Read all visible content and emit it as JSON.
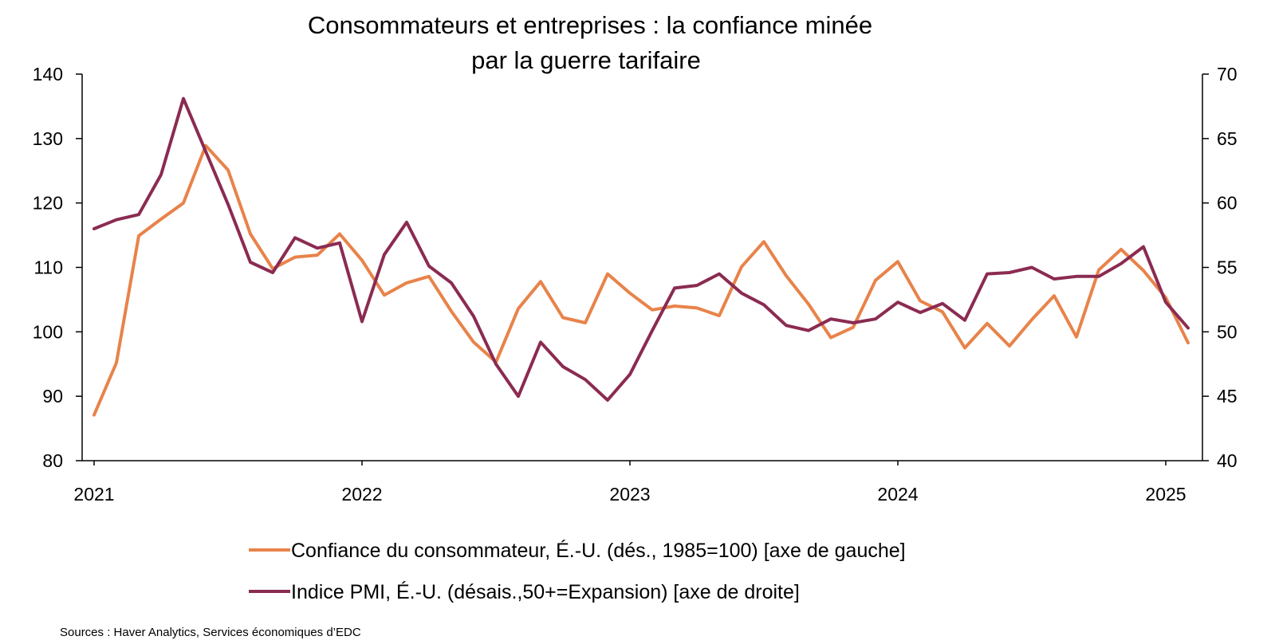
{
  "chart_data": {
    "type": "line",
    "title": [
      "Consommateurs et entreprises : la confiance minée",
      "par la guerre tarifaire"
    ],
    "x_tick_labels": [
      "2021",
      "2022",
      "2023",
      "2024",
      "2025"
    ],
    "x_range": [
      0,
      49
    ],
    "left_axis": {
      "ylim": [
        80,
        140
      ],
      "ticks": [
        80,
        90,
        100,
        110,
        120,
        130,
        140
      ]
    },
    "right_axis": {
      "ylim": [
        40,
        70
      ],
      "ticks": [
        40,
        45,
        50,
        55,
        60,
        65,
        70
      ]
    },
    "series": [
      {
        "name": "Confiance du consommateur, É.-U. (dés., 1985=100) [axe de gauche]",
        "axis": "left",
        "color": "#E8834A",
        "values": [
          87.1,
          95.2,
          114.9,
          117.5,
          120.0,
          128.9,
          125.1,
          115.2,
          109.8,
          111.6,
          111.9,
          115.2,
          111.1,
          105.7,
          107.6,
          108.6,
          103.2,
          98.4,
          95.3,
          103.6,
          107.8,
          102.2,
          101.4,
          109.0,
          106.0,
          103.4,
          104.0,
          103.7,
          102.5,
          110.1,
          114.0,
          108.7,
          104.3,
          99.1,
          100.7,
          108.0,
          110.9,
          104.8,
          103.1,
          97.5,
          101.3,
          97.8,
          101.9,
          105.6,
          99.2,
          109.6,
          112.8,
          109.5,
          105.3,
          98.3
        ]
      },
      {
        "name": "Indice PMI, É.-U. (désais.,50+=Expansion) [axe de droite]",
        "axis": "right",
        "color": "#8B2B52",
        "values": [
          58.0,
          58.7,
          59.1,
          62.2,
          68.1,
          64.0,
          59.9,
          55.4,
          54.6,
          57.3,
          56.5,
          56.9,
          50.8,
          56.0,
          58.5,
          55.1,
          53.8,
          51.2,
          47.5,
          45.0,
          49.2,
          47.3,
          46.3,
          44.7,
          46.7,
          50.1,
          53.4,
          53.6,
          54.5,
          53.0,
          52.1,
          50.5,
          50.1,
          51.0,
          50.7,
          51.0,
          52.3,
          51.5,
          52.2,
          50.9,
          54.5,
          54.6,
          55.0,
          54.1,
          54.3,
          54.3,
          55.3,
          56.6,
          52.3,
          50.3
        ]
      }
    ]
  },
  "legend": {
    "consumer_label": "Confiance du consommateur, É.-U. (dés., 1985=100) [axe de gauche]",
    "pmi_label": "Indice PMI, É.-U. (désais.,50+=Expansion) [axe de droite]"
  },
  "source_note": "Sources : Haver Analytics, Services économiques d’EDC"
}
